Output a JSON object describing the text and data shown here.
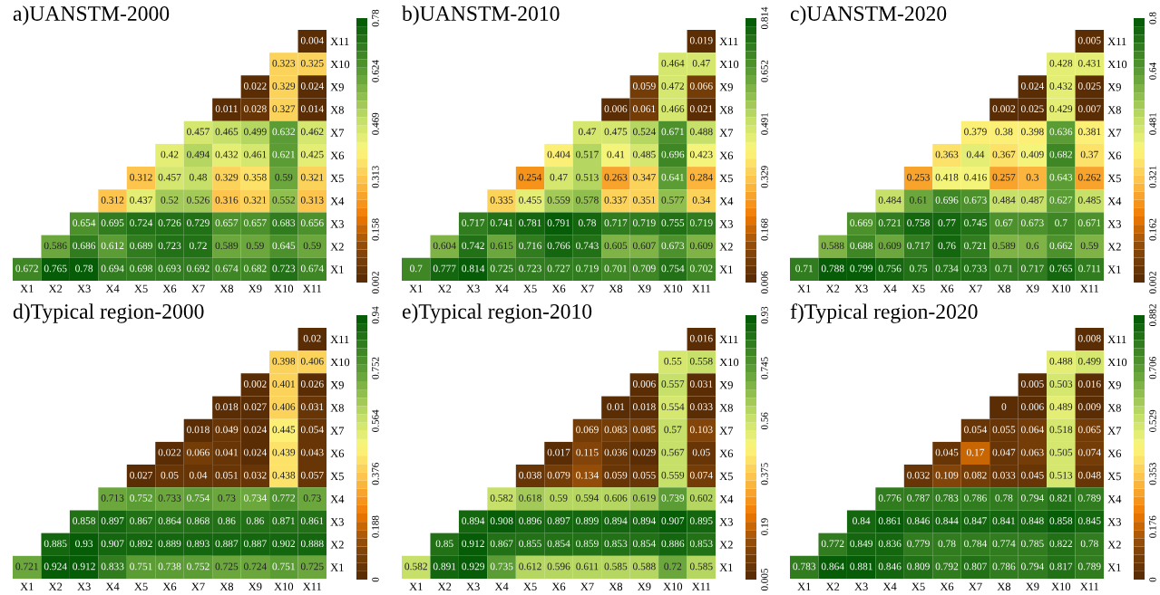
{
  "chart_data": [
    {
      "type": "heatmap",
      "title": "a)UANSTM-2000",
      "data_labels": true,
      "clim": [
        0.002,
        0.78
      ],
      "cticks": [
        0.002,
        0.158,
        0.313,
        0.469,
        0.624,
        0.78
      ],
      "categories": [
        "X1",
        "X2",
        "X3",
        "X4",
        "X5",
        "X6",
        "X7",
        "X8",
        "X9",
        "X10",
        "X11"
      ],
      "y_categories": [
        "X11",
        "X10",
        "X9",
        "X8",
        "X7",
        "X6",
        "X5",
        "X4",
        "X3",
        "X2",
        "X1"
      ],
      "cells": [
        [
          null,
          null,
          null,
          null,
          null,
          null,
          null,
          null,
          null,
          null,
          0.004
        ],
        [
          null,
          null,
          null,
          null,
          null,
          null,
          null,
          null,
          null,
          0.323,
          0.325
        ],
        [
          null,
          null,
          null,
          null,
          null,
          null,
          null,
          null,
          0.022,
          0.329,
          0.024
        ],
        [
          null,
          null,
          null,
          null,
          null,
          null,
          null,
          0.011,
          0.028,
          0.327,
          0.014
        ],
        [
          null,
          null,
          null,
          null,
          null,
          null,
          0.457,
          0.465,
          0.499,
          0.632,
          0.462
        ],
        [
          null,
          null,
          null,
          null,
          null,
          0.42,
          0.494,
          0.432,
          0.461,
          0.621,
          0.425
        ],
        [
          null,
          null,
          null,
          null,
          0.312,
          0.457,
          0.48,
          0.329,
          0.358,
          0.59,
          0.321
        ],
        [
          null,
          null,
          null,
          0.312,
          0.437,
          0.52,
          0.526,
          0.316,
          0.321,
          0.552,
          0.313
        ],
        [
          null,
          null,
          0.654,
          0.695,
          0.724,
          0.726,
          0.729,
          0.657,
          0.657,
          0.683,
          0.656
        ],
        [
          null,
          0.586,
          0.686,
          0.612,
          0.689,
          0.723,
          0.72,
          0.589,
          0.59,
          0.645,
          0.59
        ],
        [
          0.672,
          0.765,
          0.78,
          0.694,
          0.698,
          0.693,
          0.692,
          0.674,
          0.682,
          0.723,
          0.674
        ]
      ]
    },
    {
      "type": "heatmap",
      "title": "b)UANSTM-2010",
      "data_labels": true,
      "clim": [
        0.006,
        0.814
      ],
      "cticks": [
        0.006,
        0.168,
        0.329,
        0.491,
        0.652,
        0.814
      ],
      "categories": [
        "X1",
        "X2",
        "X3",
        "X4",
        "X5",
        "X6",
        "X7",
        "X8",
        "X9",
        "X10",
        "X11"
      ],
      "y_categories": [
        "X11",
        "X10",
        "X9",
        "X8",
        "X7",
        "X6",
        "X5",
        "X4",
        "X3",
        "X2",
        "X1"
      ],
      "cells": [
        [
          null,
          null,
          null,
          null,
          null,
          null,
          null,
          null,
          null,
          null,
          0.019
        ],
        [
          null,
          null,
          null,
          null,
          null,
          null,
          null,
          null,
          null,
          0.464,
          0.47
        ],
        [
          null,
          null,
          null,
          null,
          null,
          null,
          null,
          null,
          0.059,
          0.472,
          0.066
        ],
        [
          null,
          null,
          null,
          null,
          null,
          null,
          null,
          0.006,
          0.061,
          0.466,
          0.021
        ],
        [
          null,
          null,
          null,
          null,
          null,
          null,
          0.47,
          0.475,
          0.524,
          0.671,
          0.488
        ],
        [
          null,
          null,
          null,
          null,
          null,
          0.404,
          0.517,
          0.41,
          0.485,
          0.696,
          0.423
        ],
        [
          null,
          null,
          null,
          null,
          0.254,
          0.47,
          0.513,
          0.263,
          0.347,
          0.641,
          0.284
        ],
        [
          null,
          null,
          null,
          0.335,
          0.455,
          0.559,
          0.578,
          0.337,
          0.351,
          0.577,
          0.34
        ],
        [
          null,
          null,
          0.717,
          0.741,
          0.781,
          0.791,
          0.78,
          0.717,
          0.719,
          0.755,
          0.719
        ],
        [
          null,
          0.604,
          0.742,
          0.615,
          0.716,
          0.766,
          0.743,
          0.605,
          0.607,
          0.673,
          0.609
        ],
        [
          0.7,
          0.777,
          0.814,
          0.725,
          0.723,
          0.727,
          0.719,
          0.701,
          0.709,
          0.754,
          0.702
        ]
      ]
    },
    {
      "type": "heatmap",
      "title": "c)UANSTM-2020",
      "data_labels": true,
      "clim": [
        0.002,
        0.8
      ],
      "cticks": [
        0.002,
        0.162,
        0.321,
        0.481,
        0.64,
        0.8
      ],
      "categories": [
        "X1",
        "X2",
        "X3",
        "X4",
        "X5",
        "X6",
        "X7",
        "X8",
        "X9",
        "X10",
        "X11"
      ],
      "y_categories": [
        "X11",
        "X10",
        "X9",
        "X8",
        "X7",
        "X6",
        "X5",
        "X4",
        "X3",
        "X2",
        "X1"
      ],
      "cells": [
        [
          null,
          null,
          null,
          null,
          null,
          null,
          null,
          null,
          null,
          null,
          0.005
        ],
        [
          null,
          null,
          null,
          null,
          null,
          null,
          null,
          null,
          null,
          0.428,
          0.431
        ],
        [
          null,
          null,
          null,
          null,
          null,
          null,
          null,
          null,
          0.024,
          0.432,
          0.025
        ],
        [
          null,
          null,
          null,
          null,
          null,
          null,
          null,
          0.002,
          0.025,
          0.429,
          0.007
        ],
        [
          null,
          null,
          null,
          null,
          null,
          null,
          0.379,
          0.38,
          0.398,
          0.636,
          0.381
        ],
        [
          null,
          null,
          null,
          null,
          null,
          0.363,
          0.44,
          0.367,
          0.409,
          0.682,
          0.37
        ],
        [
          null,
          null,
          null,
          null,
          0.253,
          0.418,
          0.416,
          0.257,
          0.3,
          0.643,
          0.262
        ],
        [
          null,
          null,
          null,
          0.484,
          0.61,
          0.696,
          0.673,
          0.484,
          0.487,
          0.627,
          0.485
        ],
        [
          null,
          null,
          0.669,
          0.721,
          0.758,
          0.77,
          0.745,
          0.67,
          0.673,
          0.7,
          0.671
        ],
        [
          null,
          0.588,
          0.688,
          0.609,
          0.717,
          0.76,
          0.721,
          0.589,
          0.6,
          0.662,
          0.59
        ],
        [
          0.71,
          0.788,
          0.799,
          0.756,
          0.75,
          0.734,
          0.733,
          0.71,
          0.717,
          0.765,
          0.711
        ]
      ]
    },
    {
      "type": "heatmap",
      "title": "d)Typical region-2000",
      "data_labels": true,
      "clim": [
        0,
        0.94
      ],
      "cticks": [
        0,
        0.188,
        0.376,
        0.564,
        0.752,
        0.94
      ],
      "categories": [
        "X1",
        "X2",
        "X3",
        "X4",
        "X5",
        "X6",
        "X7",
        "X8",
        "X9",
        "X10",
        "X11"
      ],
      "y_categories": [
        "X11",
        "X10",
        "X9",
        "X8",
        "X7",
        "X6",
        "X5",
        "X4",
        "X3",
        "X2",
        "X1"
      ],
      "cells": [
        [
          null,
          null,
          null,
          null,
          null,
          null,
          null,
          null,
          null,
          null,
          0.02
        ],
        [
          null,
          null,
          null,
          null,
          null,
          null,
          null,
          null,
          null,
          0.398,
          0.406
        ],
        [
          null,
          null,
          null,
          null,
          null,
          null,
          null,
          null,
          0.002,
          0.401,
          0.026
        ],
        [
          null,
          null,
          null,
          null,
          null,
          null,
          null,
          0.018,
          0.027,
          0.406,
          0.031
        ],
        [
          null,
          null,
          null,
          null,
          null,
          null,
          0.018,
          0.049,
          0.024,
          0.445,
          0.054
        ],
        [
          null,
          null,
          null,
          null,
          null,
          0.022,
          0.066,
          0.041,
          0.024,
          0.439,
          0.043
        ],
        [
          null,
          null,
          null,
          null,
          0.027,
          0.05,
          0.04,
          0.051,
          0.032,
          0.438,
          0.057
        ],
        [
          null,
          null,
          null,
          0.713,
          0.752,
          0.733,
          0.754,
          0.73,
          0.734,
          0.772,
          0.73
        ],
        [
          null,
          null,
          0.858,
          0.897,
          0.867,
          0.864,
          0.868,
          0.86,
          0.86,
          0.871,
          0.861
        ],
        [
          null,
          0.885,
          0.93,
          0.907,
          0.892,
          0.889,
          0.893,
          0.887,
          0.887,
          0.902,
          0.888
        ],
        [
          0.721,
          0.924,
          0.912,
          0.833,
          0.751,
          0.738,
          0.752,
          0.725,
          0.724,
          0.751,
          0.725
        ]
      ]
    },
    {
      "type": "heatmap",
      "title": "e)Typical region-2010",
      "data_labels": true,
      "clim": [
        0.005,
        0.93
      ],
      "cticks": [
        0.005,
        0.19,
        0.375,
        0.56,
        0.745,
        0.93
      ],
      "categories": [
        "X1",
        "X2",
        "X3",
        "X4",
        "X5",
        "X6",
        "X7",
        "X8",
        "X9",
        "X10",
        "X11"
      ],
      "y_categories": [
        "X11",
        "X10",
        "X9",
        "X8",
        "X7",
        "X6",
        "X5",
        "X4",
        "X3",
        "X2",
        "X1"
      ],
      "cells": [
        [
          null,
          null,
          null,
          null,
          null,
          null,
          null,
          null,
          null,
          null,
          0.016
        ],
        [
          null,
          null,
          null,
          null,
          null,
          null,
          null,
          null,
          null,
          0.55,
          0.558
        ],
        [
          null,
          null,
          null,
          null,
          null,
          null,
          null,
          null,
          0.006,
          0.557,
          0.031
        ],
        [
          null,
          null,
          null,
          null,
          null,
          null,
          null,
          0.01,
          0.018,
          0.554,
          0.033
        ],
        [
          null,
          null,
          null,
          null,
          null,
          null,
          0.069,
          0.083,
          0.085,
          0.57,
          0.103
        ],
        [
          null,
          null,
          null,
          null,
          null,
          0.017,
          0.115,
          0.036,
          0.029,
          0.567,
          0.05
        ],
        [
          null,
          null,
          null,
          null,
          0.038,
          0.079,
          0.134,
          0.059,
          0.055,
          0.559,
          0.074
        ],
        [
          null,
          null,
          null,
          0.582,
          0.618,
          0.59,
          0.594,
          0.606,
          0.619,
          0.739,
          0.602
        ],
        [
          null,
          null,
          0.894,
          0.908,
          0.896,
          0.897,
          0.899,
          0.894,
          0.894,
          0.907,
          0.895
        ],
        [
          null,
          0.85,
          0.912,
          0.867,
          0.855,
          0.854,
          0.859,
          0.853,
          0.854,
          0.886,
          0.853
        ],
        [
          0.582,
          0.891,
          0.929,
          0.735,
          0.612,
          0.596,
          0.611,
          0.585,
          0.588,
          0.72,
          0.585
        ]
      ]
    },
    {
      "type": "heatmap",
      "title": "f)Typical region-2020",
      "data_labels": true,
      "clim": [
        0,
        0.882
      ],
      "cticks": [
        0,
        0.176,
        0.353,
        0.529,
        0.706,
        0.882
      ],
      "categories": [
        "X1",
        "X2",
        "X3",
        "X4",
        "X5",
        "X6",
        "X7",
        "X8",
        "X9",
        "X10",
        "X11"
      ],
      "y_categories": [
        "X11",
        "X10",
        "X9",
        "X8",
        "X7",
        "X6",
        "X5",
        "X4",
        "X3",
        "X2",
        "X1"
      ],
      "cells": [
        [
          null,
          null,
          null,
          null,
          null,
          null,
          null,
          null,
          null,
          null,
          0.008
        ],
        [
          null,
          null,
          null,
          null,
          null,
          null,
          null,
          null,
          null,
          0.488,
          0.499
        ],
        [
          null,
          null,
          null,
          null,
          null,
          null,
          null,
          null,
          0.005,
          0.503,
          0.016
        ],
        [
          null,
          null,
          null,
          null,
          null,
          null,
          null,
          0,
          0.006,
          0.489,
          0.009
        ],
        [
          null,
          null,
          null,
          null,
          null,
          null,
          0.054,
          0.055,
          0.064,
          0.518,
          0.065
        ],
        [
          null,
          null,
          null,
          null,
          null,
          0.045,
          0.17,
          0.047,
          0.063,
          0.505,
          0.074
        ],
        [
          null,
          null,
          null,
          null,
          0.032,
          0.109,
          0.082,
          0.033,
          0.045,
          0.513,
          0.048
        ],
        [
          null,
          null,
          null,
          0.776,
          0.787,
          0.783,
          0.786,
          0.78,
          0.794,
          0.821,
          0.789
        ],
        [
          null,
          null,
          0.84,
          0.861,
          0.846,
          0.844,
          0.847,
          0.841,
          0.848,
          0.858,
          0.845
        ],
        [
          null,
          0.772,
          0.849,
          0.836,
          0.779,
          0.78,
          0.784,
          0.774,
          0.785,
          0.822,
          0.78
        ],
        [
          0.783,
          0.864,
          0.881,
          0.846,
          0.809,
          0.792,
          0.807,
          0.786,
          0.794,
          0.817,
          0.789
        ]
      ]
    }
  ]
}
